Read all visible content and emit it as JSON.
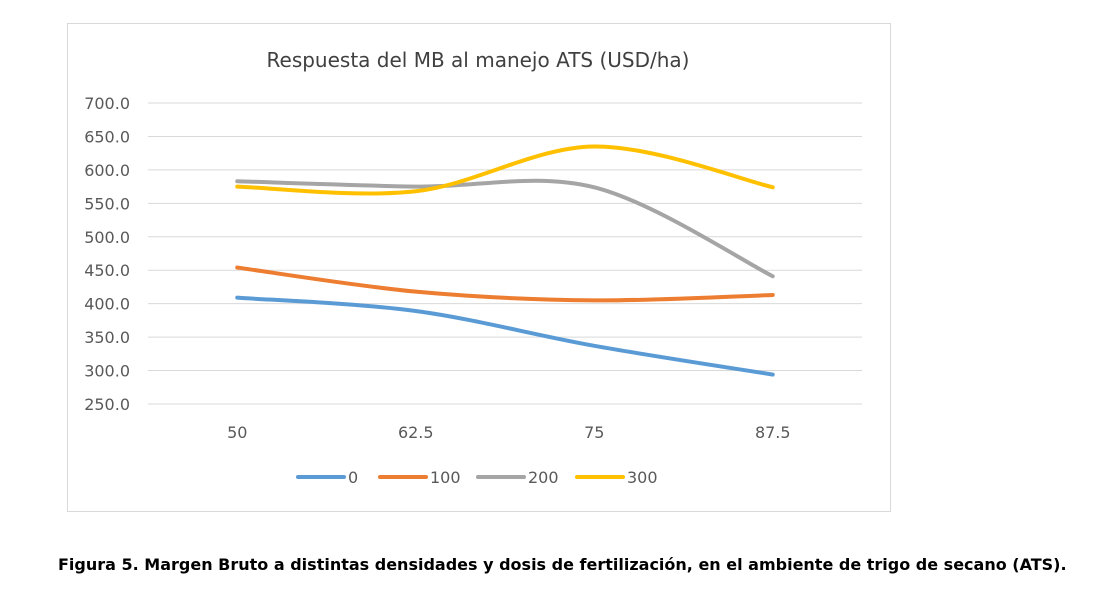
{
  "chart_data": {
    "type": "line",
    "title": "Respuesta  del MB al manejo ATS (USD/ha)",
    "xlabel": "",
    "ylabel": "",
    "categories": [
      "50",
      "62.5",
      "75",
      "87.5"
    ],
    "ylim": [
      250,
      700
    ],
    "yticks": [
      "700.0",
      "650.0",
      "600.0",
      "550.0",
      "500.0",
      "450.0",
      "400.0",
      "350.0",
      "300.0",
      "250.0"
    ],
    "grid": true,
    "smooth": true,
    "legend": "bottom",
    "series": [
      {
        "name": "0",
        "color": "#5B9BD5",
        "values": [
          409,
          389,
          337,
          294
        ]
      },
      {
        "name": "100",
        "color": "#ED7D31",
        "values": [
          454,
          418,
          405,
          413
        ]
      },
      {
        "name": "200",
        "color": "#A5A5A5",
        "values": [
          583,
          575,
          574,
          441
        ]
      },
      {
        "name": "300",
        "color": "#FFC000",
        "values": [
          575,
          568,
          635,
          574
        ]
      }
    ]
  },
  "caption": "Figura 5. Margen Bruto a distintas densidades y dosis de fertilización, en el ambiente de trigo de secano (ATS)."
}
